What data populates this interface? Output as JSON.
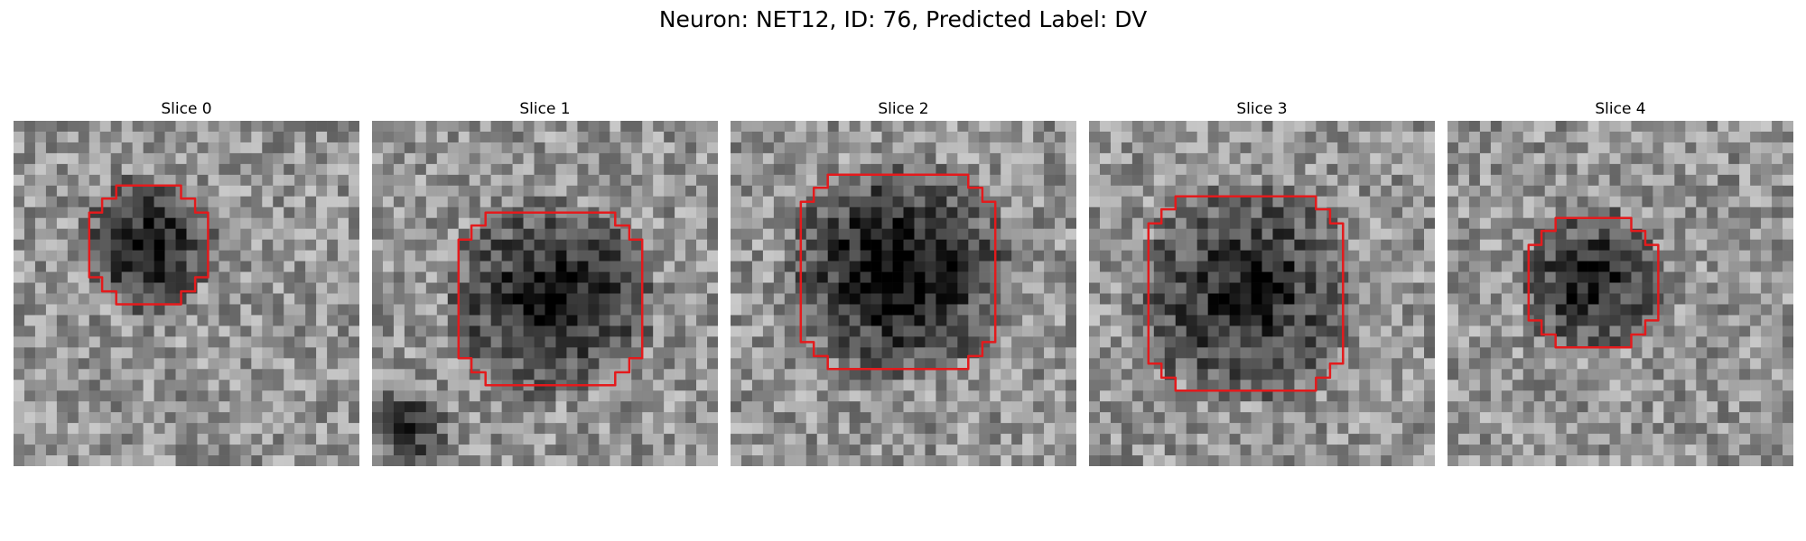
{
  "figure": {
    "title": "Neuron: NET12, ID: 76, Predicted Label: DV",
    "contour_color": "#e41a1c",
    "colormap": "grayscale"
  },
  "slices": [
    {
      "title": "Slice 0"
    },
    {
      "title": "Slice 1"
    },
    {
      "title": "Slice 2"
    },
    {
      "title": "Slice 3"
    },
    {
      "title": "Slice 4"
    }
  ]
}
